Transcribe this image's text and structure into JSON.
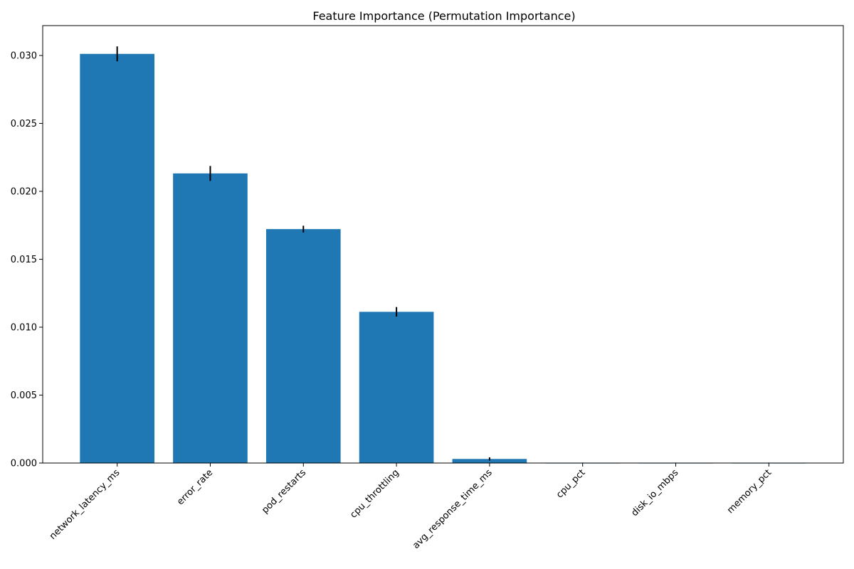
{
  "chart_data": {
    "type": "bar",
    "title": "Feature Importance (Permutation Importance)",
    "xlabel": "",
    "ylabel": "",
    "categories": [
      "network_latency_ms",
      "error_rate",
      "pod_restarts",
      "cpu_throttling",
      "avg_response_time_ms",
      "cpu_pct",
      "disk_io_mbps",
      "memory_pct"
    ],
    "values": [
      0.03012,
      0.02132,
      0.01722,
      0.01113,
      0.0003,
      2e-05,
      2e-05,
      2e-05
    ],
    "errors": [
      0.00055,
      0.00055,
      0.00025,
      0.00035,
      0.00012,
      1e-05,
      1e-05,
      1e-05
    ],
    "ylim": [
      0,
      0.0322
    ],
    "yticks": [
      0.0,
      0.005,
      0.01,
      0.015,
      0.02,
      0.025,
      0.03
    ],
    "ytick_labels": [
      "0.000",
      "0.005",
      "0.010",
      "0.015",
      "0.020",
      "0.025",
      "0.030"
    ],
    "grid": false,
    "colors": {
      "bar": "#1f77b4",
      "error_bar": "#000000"
    }
  }
}
